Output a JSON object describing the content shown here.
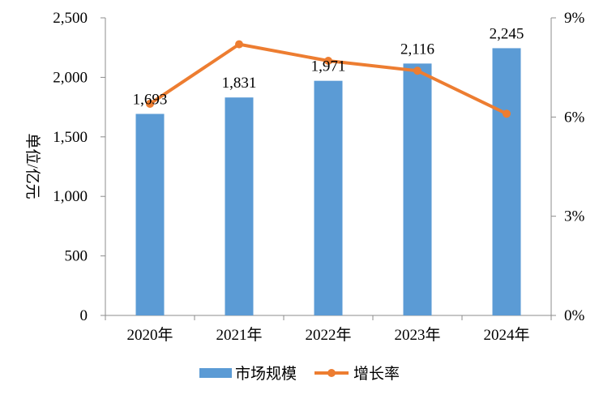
{
  "chart_data": {
    "type": "bar",
    "title": "",
    "xlabel": "",
    "ylabel": "单位/亿元",
    "categories": [
      "2020年",
      "2021年",
      "2022年",
      "2023年",
      "2024年"
    ],
    "series": [
      {
        "name": "市场规模",
        "type": "bar",
        "axis": "left",
        "color": "#5B9BD5",
        "values": [
          1693,
          1831,
          1971,
          2116,
          2245
        ],
        "labels": [
          "1,693",
          "1,831",
          "1,971",
          "2,116",
          "2,245"
        ]
      },
      {
        "name": "增长率",
        "type": "line",
        "axis": "right",
        "color": "#ED7D31",
        "values": [
          6.4,
          8.2,
          7.7,
          7.4,
          6.1
        ]
      }
    ],
    "ylim": [
      0,
      2500
    ],
    "y_ticks": [
      0,
      500,
      1000,
      1500,
      2000,
      2500
    ],
    "y_tick_labels": [
      "0",
      "500",
      "1,000",
      "1,500",
      "2,000",
      "2,500"
    ],
    "y2lim": [
      0,
      9
    ],
    "y2_ticks": [
      0,
      3,
      6,
      9
    ],
    "y2_tick_labels": [
      "0%",
      "3%",
      "6%",
      "9%"
    ],
    "grid": false,
    "legend_position": "bottom"
  }
}
